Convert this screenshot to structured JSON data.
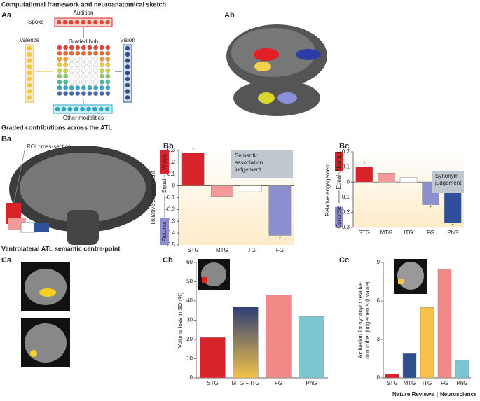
{
  "headings": [
    "Computational framework and neuroanatomical sketch",
    "Graded contributions across the ATL",
    "Ventrolateral ATL semantic centre-point"
  ],
  "panel_labels": [
    "Aa",
    "Ab",
    "Ba",
    "Bb",
    "Bc",
    "Ca",
    "Cb",
    "Cc"
  ],
  "diagram": {
    "spoke": "Spoke",
    "audition": "Audition",
    "hub": "Graded hub",
    "valence": "Valence",
    "vision": "Vision",
    "other": "Other modalities"
  },
  "roi_label": "ROI cross-section",
  "footer": {
    "journal": "Nature Reviews",
    "separator": "|",
    "section": "Neuroscience"
  },
  "chart_data": [
    {
      "type": "bar",
      "categories": [
        "STG",
        "MTG",
        "ITG",
        "FG"
      ],
      "values": [
        0.28,
        -0.09,
        -0.05,
        -0.42
      ],
      "colors": [
        "#d7242b",
        "#f29a9a",
        "#ffffff",
        "#8c8fcf"
      ],
      "stars": [
        "*",
        null,
        null,
        "*"
      ],
      "ylim": [
        -0.5,
        0.3
      ],
      "yticks": [
        0.3,
        0.2,
        0.1,
        0,
        -0.1,
        -0.2,
        -0.3,
        -0.4,
        -0.5
      ],
      "y_label": [
        "Relative engagement"
      ],
      "top_label": "Words",
      "bottom_label": "Pictures",
      "middle_label": "Equal",
      "box_lines": [
        "Semantic",
        "association",
        "judgement"
      ]
    },
    {
      "type": "bar",
      "categories": [
        "STG",
        "MTG",
        "ITG",
        "FG",
        "PhG"
      ],
      "values": [
        0.1,
        0.06,
        0.03,
        -0.15,
        -0.27
      ],
      "colors": [
        "#d7242b",
        "#f29a9a",
        "#ffffff",
        "#8c8fcf",
        "#2f4f9c"
      ],
      "stars": [
        "*",
        null,
        null,
        "*",
        "*"
      ],
      "ylim": [
        -0.3,
        0.2
      ],
      "yticks": [
        0.2,
        0.1,
        0,
        -0.1,
        -0.2,
        -0.3
      ],
      "y_label": [
        "Relative engagement"
      ],
      "top_label": "Abstract",
      "bottom_label": "Concrete",
      "middle_label": "Equal",
      "box_lines": [
        "Synonym",
        "judgement"
      ]
    },
    {
      "type": "bar",
      "categories": [
        "STG",
        "MTG + ITG",
        "FG",
        "PhG"
      ],
      "values": [
        21,
        37,
        43,
        32
      ],
      "colors": [
        "#d7242b",
        [
          "#2c3e75",
          "#f4c24a"
        ],
        "#f08a86",
        "#7cc6d2"
      ],
      "ylim": [
        0,
        60
      ],
      "yticks": [
        0,
        10,
        20,
        30,
        40,
        50,
        60
      ],
      "y_label": [
        "Volume loss in SD (%)"
      ]
    },
    {
      "type": "bar",
      "categories": [
        "STG",
        "MTG",
        "ITG",
        "FG",
        "PhG"
      ],
      "values": [
        0.3,
        1.9,
        5.5,
        8.5,
        1.4
      ],
      "colors": [
        "#d7242b",
        "#2f4f8c",
        "#f7c04a",
        "#f08a86",
        "#7cc6d2"
      ],
      "ylim": [
        0,
        9
      ],
      "yticks": [
        0,
        3,
        6,
        9
      ],
      "y_label": [
        "Activation for synonym relative",
        "to number judgements (t value)"
      ]
    }
  ]
}
